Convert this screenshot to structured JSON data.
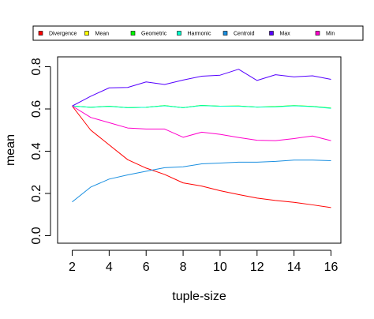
{
  "chart_data": {
    "type": "line",
    "title": "",
    "xlabel": "tuple-size",
    "ylabel": "mean",
    "xlim": [
      2,
      16
    ],
    "ylim": [
      0.0,
      0.8
    ],
    "x_ticks": [
      2,
      4,
      6,
      8,
      10,
      12,
      14,
      16
    ],
    "x_tick_labels": [
      "2",
      "4",
      "6",
      "8",
      "10",
      "12",
      "14",
      "16"
    ],
    "y_ticks": [
      0.0,
      0.2,
      0.4,
      0.6,
      0.8
    ],
    "y_tick_labels": [
      "0.0",
      "0.2",
      "0.4",
      "0.6",
      "0.8"
    ],
    "grid": false,
    "legend_position": "top",
    "x": [
      2,
      3,
      4,
      5,
      6,
      7,
      8,
      9,
      10,
      11,
      12,
      13,
      14,
      15,
      16
    ],
    "series": [
      {
        "name": "Divergence",
        "color": "#ff0000",
        "values": [
          0.614,
          0.5,
          0.43,
          0.36,
          0.32,
          0.29,
          0.25,
          0.235,
          0.213,
          0.195,
          0.178,
          0.167,
          0.158,
          0.146,
          0.133
        ]
      },
      {
        "name": "Mean",
        "color": "#ffff00",
        "values": [
          0.614,
          0.608,
          0.613,
          0.606,
          0.608,
          0.616,
          0.606,
          0.617,
          0.613,
          0.614,
          0.609,
          0.611,
          0.616,
          0.612,
          0.604
        ]
      },
      {
        "name": "Geometric",
        "color": "#00ff00",
        "values": [
          0.614,
          0.608,
          0.613,
          0.606,
          0.608,
          0.616,
          0.606,
          0.617,
          0.613,
          0.614,
          0.609,
          0.611,
          0.616,
          0.612,
          0.604
        ]
      },
      {
        "name": "Harmonic",
        "color": "#00ffcc",
        "values": [
          0.614,
          0.608,
          0.612,
          0.606,
          0.608,
          0.615,
          0.606,
          0.616,
          0.613,
          0.613,
          0.609,
          0.61,
          0.615,
          0.611,
          0.603
        ]
      },
      {
        "name": "Centroid",
        "color": "#1a8fe0",
        "values": [
          0.16,
          0.23,
          0.268,
          0.288,
          0.305,
          0.322,
          0.326,
          0.34,
          0.344,
          0.348,
          0.348,
          0.352,
          0.358,
          0.358,
          0.355
        ]
      },
      {
        "name": "Max",
        "color": "#5500ff",
        "values": [
          0.614,
          0.66,
          0.7,
          0.702,
          0.728,
          0.716,
          0.737,
          0.755,
          0.76,
          0.788,
          0.735,
          0.762,
          0.752,
          0.757,
          0.74
        ]
      },
      {
        "name": "Min",
        "color": "#ff00cc",
        "values": [
          0.614,
          0.56,
          0.535,
          0.51,
          0.505,
          0.505,
          0.466,
          0.49,
          0.48,
          0.465,
          0.452,
          0.45,
          0.46,
          0.472,
          0.45
        ]
      }
    ]
  }
}
